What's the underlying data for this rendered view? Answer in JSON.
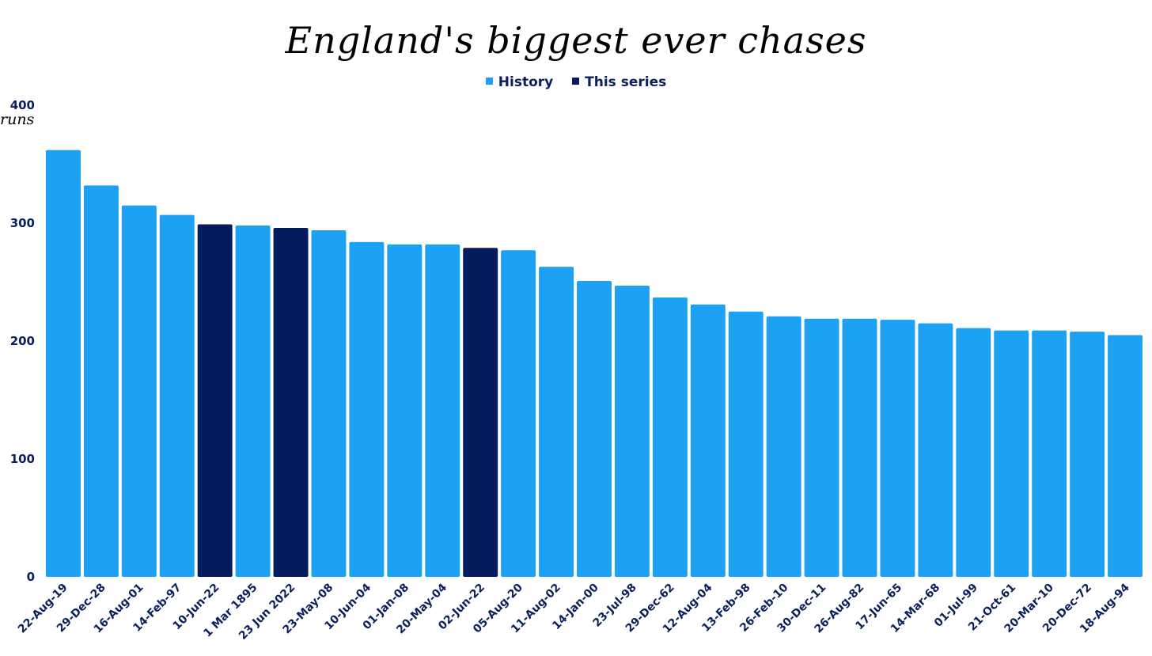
{
  "chart_data": {
    "type": "bar",
    "title": "England's biggest ever chases",
    "ylabel": "runs",
    "xlabel": "",
    "ylim": [
      0,
      400
    ],
    "yticks": [
      0,
      100,
      200,
      300,
      400
    ],
    "grid": false,
    "legend_position": "top-center",
    "legend": [
      {
        "name": "History",
        "color": "#1da1f2"
      },
      {
        "name": "This series",
        "color": "#041c5e"
      }
    ],
    "categories": [
      "22-Aug-19",
      "29-Dec-28",
      "16-Aug-01",
      "14-Feb-97",
      "10-Jun-22",
      "1 Mar 1895",
      "23 Jun 2022",
      "23-May-08",
      "10-Jun-04",
      "01-Jan-08",
      "20-May-04",
      "02-Jun-22",
      "05-Aug-20",
      "11-Aug-02",
      "14-Jan-00",
      "23-Jul-98",
      "29-Dec-62",
      "12-Aug-04",
      "13-Feb-98",
      "26-Feb-10",
      "30-Dec-11",
      "26-Aug-82",
      "17-Jun-65",
      "14-Mar-68",
      "01-Jul-99",
      "21-Oct-61",
      "20-Mar-10",
      "20-Dec-72",
      "18-Aug-94"
    ],
    "values": [
      362,
      332,
      315,
      307,
      299,
      298,
      296,
      294,
      284,
      282,
      282,
      279,
      277,
      263,
      251,
      247,
      237,
      231,
      225,
      221,
      219,
      219,
      218,
      215,
      211,
      209,
      209,
      208,
      205
    ],
    "groups": [
      "History",
      "History",
      "History",
      "History",
      "This series",
      "History",
      "This series",
      "History",
      "History",
      "History",
      "History",
      "This series",
      "History",
      "History",
      "History",
      "History",
      "History",
      "History",
      "History",
      "History",
      "History",
      "History",
      "History",
      "History",
      "History",
      "History",
      "History",
      "History",
      "History"
    ]
  }
}
